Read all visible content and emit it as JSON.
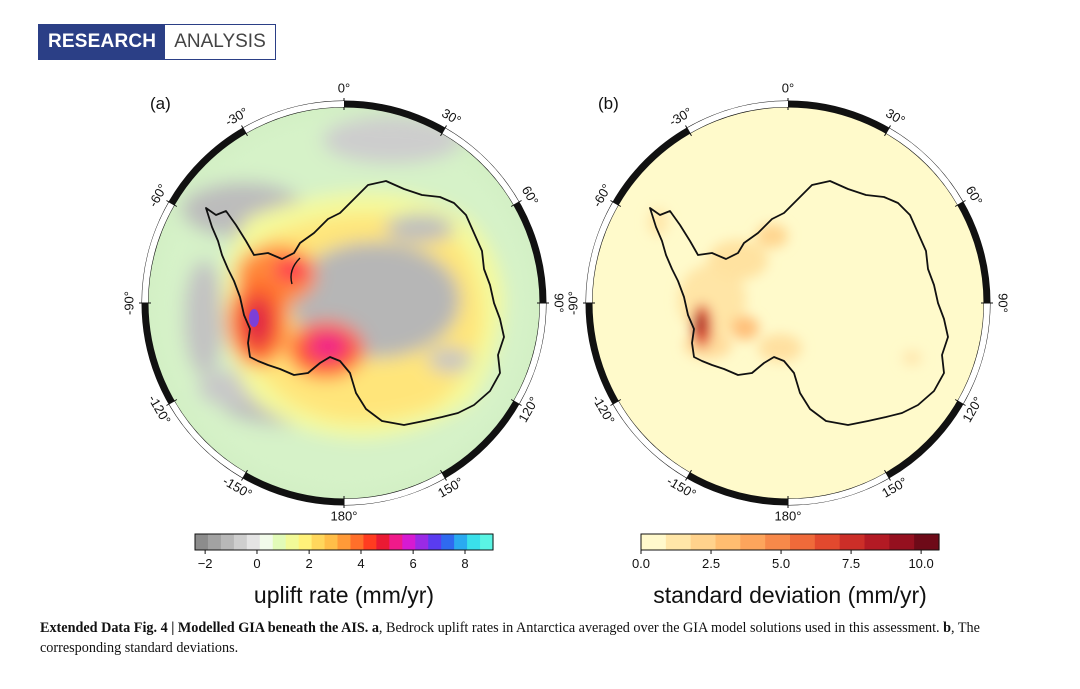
{
  "badge": {
    "left": "RESEARCH",
    "right": "ANALYSIS"
  },
  "panels": [
    {
      "label": "(a)",
      "lon_labels": [
        "0°",
        "30°",
        "60°",
        "90°",
        "120°",
        "150°",
        "180°",
        "-150°",
        "-120°",
        "-90°",
        "-60°",
        "-30°"
      ],
      "colorbar": {
        "ticks": [
          "−2",
          "0",
          "2",
          "4",
          "6",
          "8"
        ],
        "title": "uplift rate (mm/yr)",
        "colors": [
          "#8c8c8c",
          "#a2a2a2",
          "#b8b8b8",
          "#cecece",
          "#e4e4e4",
          "#f2fbea",
          "#e2fbb8",
          "#f2fa98",
          "#fff27a",
          "#ffd75c",
          "#ffbe48",
          "#ff9a38",
          "#ff6f2a",
          "#ff3c20",
          "#ea1a33",
          "#f01a8a",
          "#d61ad2",
          "#9a2ae6",
          "#5a3cf0",
          "#2f6af0",
          "#2aaaf0",
          "#3ae0ea",
          "#5af5e4"
        ]
      }
    },
    {
      "label": "(b)",
      "lon_labels": [
        "0°",
        "30°",
        "60°",
        "90°",
        "120°",
        "150°",
        "180°",
        "-150°",
        "-120°",
        "-90°",
        "-60°",
        "-30°"
      ],
      "colorbar": {
        "ticks": [
          "0.0",
          "2.5",
          "5.0",
          "7.5",
          "10.0"
        ],
        "title": "standard deviation (mm/yr)",
        "colors": [
          "#fff9cc",
          "#ffe6a8",
          "#ffd28c",
          "#ffbd70",
          "#fda55c",
          "#f7894a",
          "#ef6a3a",
          "#e2492e",
          "#cc2e28",
          "#b31a24",
          "#95101f",
          "#6e0a18"
        ]
      }
    }
  ],
  "caption": {
    "figure_label": "Extended Data Fig. 4 | Modelled GIA beneath the AIS.",
    "part_a_label": "a",
    "part_a_text": ", Bedrock uplift rates in Antarctica averaged over the GIA model solutions used in this assessment.",
    "part_b_label": "b",
    "part_b_text": ", The corresponding standard deviations."
  }
}
